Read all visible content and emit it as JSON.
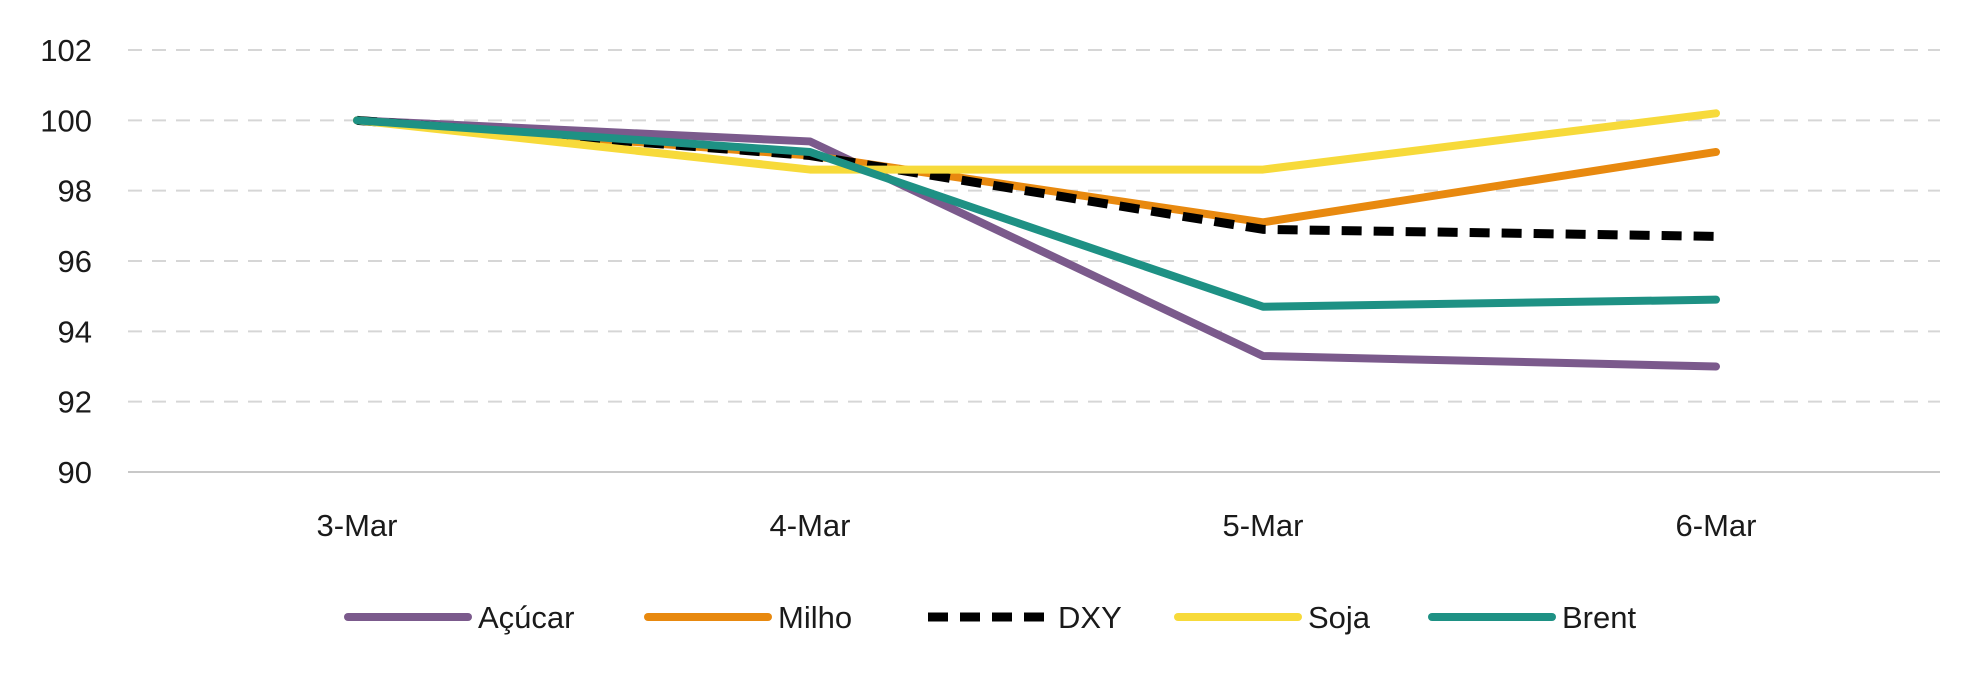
{
  "chart_data": {
    "type": "line",
    "title": "",
    "xlabel": "",
    "ylabel": "",
    "categories": [
      "3-Mar",
      "4-Mar",
      "5-Mar",
      "6-Mar"
    ],
    "ylim": [
      90,
      102
    ],
    "yticks": [
      90,
      92,
      94,
      96,
      98,
      100,
      102
    ],
    "grid": "horizontal dashed",
    "legend_position": "bottom",
    "series": [
      {
        "name": "Açúcar",
        "color": "#7b5a8c",
        "dashed": false,
        "values": [
          100,
          99.4,
          93.3,
          93.0
        ]
      },
      {
        "name": "Milho",
        "color": "#e8890f",
        "dashed": false,
        "values": [
          100,
          99.0,
          97.1,
          99.1
        ]
      },
      {
        "name": "DXY",
        "color": "#000000",
        "dashed": true,
        "values": [
          100,
          99.0,
          96.9,
          96.7
        ]
      },
      {
        "name": "Soja",
        "color": "#f7da3a",
        "dashed": false,
        "values": [
          100,
          98.6,
          98.6,
          100.2
        ]
      },
      {
        "name": "Brent",
        "color": "#1e9184",
        "dashed": false,
        "values": [
          100,
          99.1,
          94.7,
          94.9
        ]
      }
    ]
  }
}
